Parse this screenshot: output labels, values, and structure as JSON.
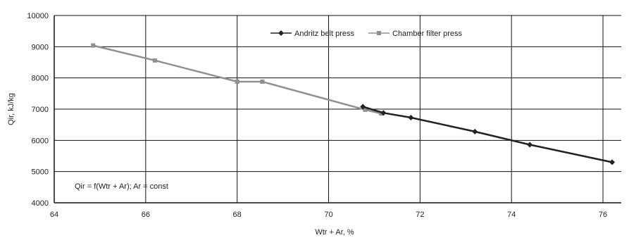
{
  "chart_data": {
    "type": "line",
    "xlabel": "Wtr + Ar, %",
    "ylabel": "Qir, kJ/kg",
    "xlim": [
      64,
      76.4
    ],
    "ylim": [
      4000,
      10000
    ],
    "x_ticks": [
      64,
      66,
      68,
      70,
      72,
      74,
      76
    ],
    "y_ticks": [
      4000,
      5000,
      6000,
      7000,
      8000,
      9000,
      10000
    ],
    "x_tick_labels": [
      "64",
      "66",
      "68",
      "70",
      "72",
      "74",
      "76"
    ],
    "y_tick_labels": [
      "4000",
      "5000",
      "6000",
      "7000",
      "8000",
      "9000",
      "10000"
    ],
    "grid": true,
    "legend_position": "top-center",
    "annotation": "Qir = f(Wtr + Ar); Ar = const",
    "series": [
      {
        "name": "Andritz belt press",
        "color": "#222222",
        "marker": "diamond",
        "points": [
          {
            "x": 70.75,
            "y": 7080
          },
          {
            "x": 71.2,
            "y": 6880
          },
          {
            "x": 71.8,
            "y": 6730
          },
          {
            "x": 73.2,
            "y": 6280
          },
          {
            "x": 74.4,
            "y": 5860
          },
          {
            "x": 76.2,
            "y": 5300
          }
        ]
      },
      {
        "name": "Chamber filter press",
        "color": "#909090",
        "marker": "square",
        "points": [
          {
            "x": 64.85,
            "y": 9040
          },
          {
            "x": 66.2,
            "y": 8560
          },
          {
            "x": 68.0,
            "y": 7880
          },
          {
            "x": 68.55,
            "y": 7880
          },
          {
            "x": 70.8,
            "y": 6980
          },
          {
            "x": 71.15,
            "y": 6860
          }
        ]
      }
    ]
  }
}
